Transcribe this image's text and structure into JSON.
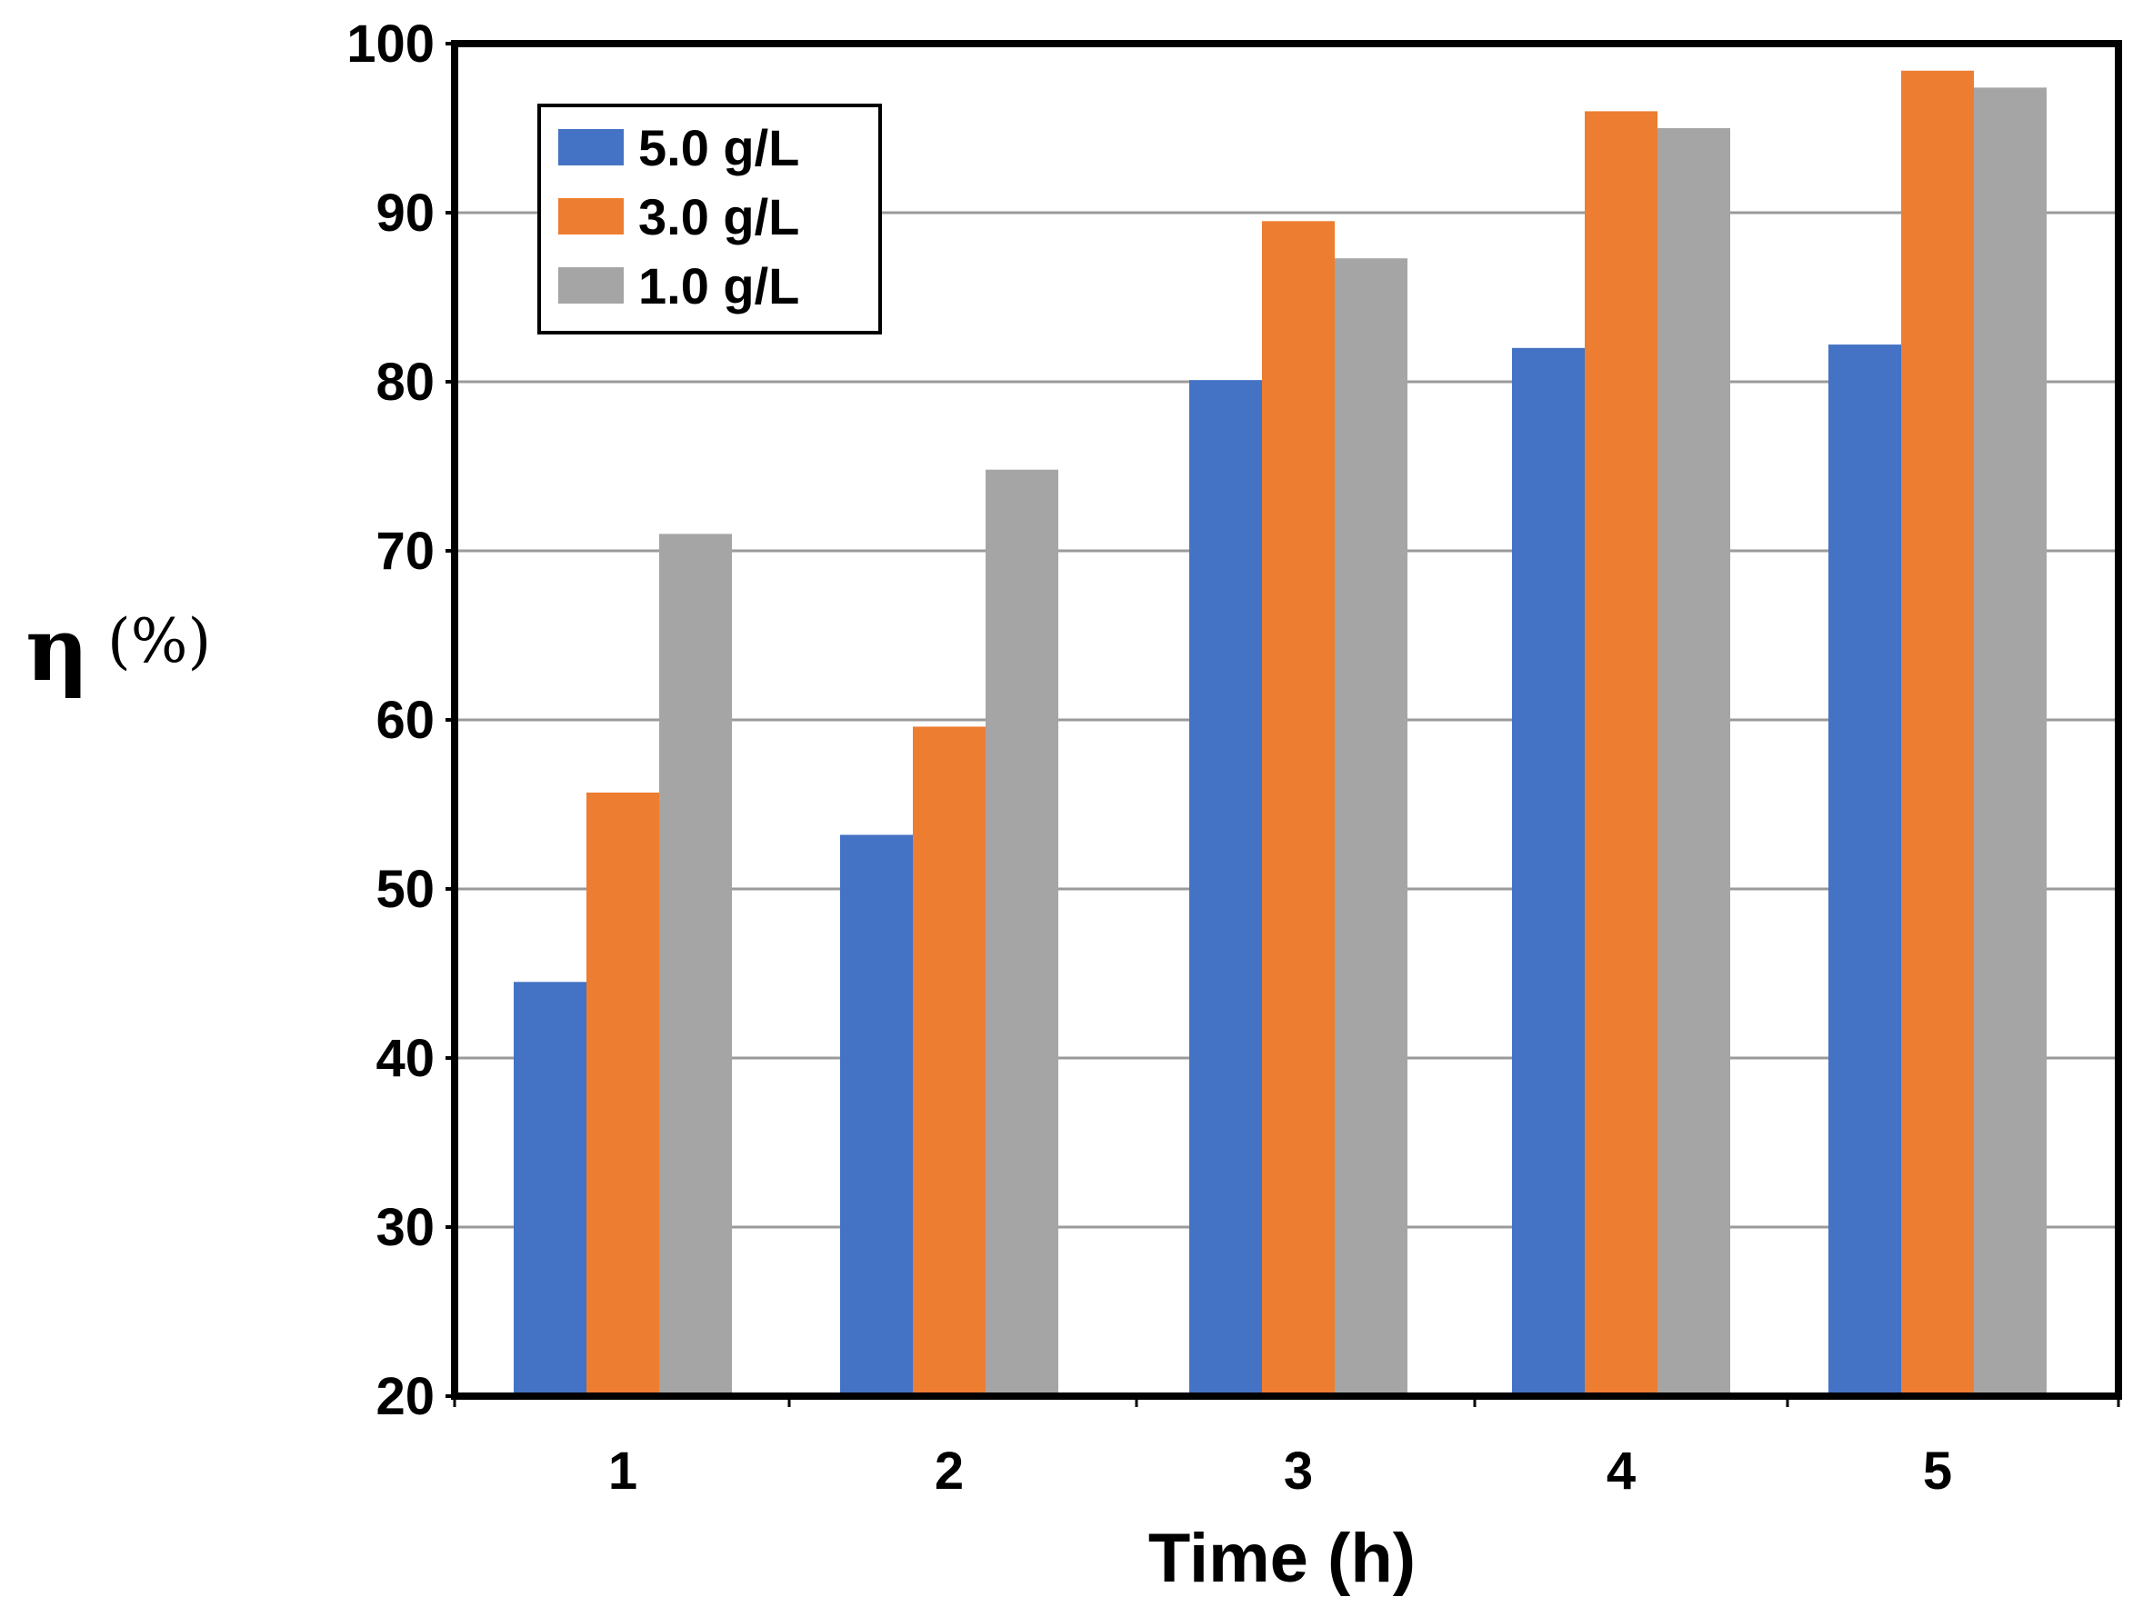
{
  "chart_data": {
    "type": "bar",
    "title": "",
    "xlabel": "Time (h)",
    "ylabel_symbol": "η",
    "ylabel_unit": "(%)",
    "categories": [
      "1",
      "2",
      "3",
      "4",
      "5"
    ],
    "series": [
      {
        "name": "5.0 g/L",
        "color": "#4472c4",
        "values": [
          44.5,
          53.2,
          80.1,
          82.0,
          82.2
        ]
      },
      {
        "name": "3.0 g/L",
        "color": "#ed7d31",
        "values": [
          55.7,
          59.6,
          89.5,
          96.0,
          98.4
        ]
      },
      {
        "name": "1.0 g/L",
        "color": "#a5a5a5",
        "values": [
          71.0,
          74.8,
          87.3,
          95.0,
          97.4
        ]
      }
    ],
    "ylim": [
      20,
      100
    ],
    "yticks": [
      "20",
      "30",
      "40",
      "50",
      "60",
      "70",
      "80",
      "90",
      "100"
    ],
    "grid": true,
    "legend_position": "top-left"
  }
}
